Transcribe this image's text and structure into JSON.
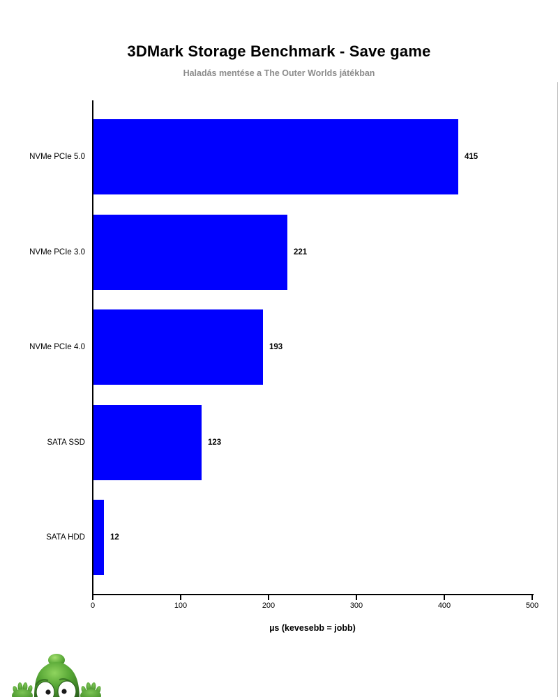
{
  "header": {
    "title": "3DMark Storage Benchmark - Save game",
    "subtitle": "Haladás mentése a The Outer Worlds játékban"
  },
  "chart_data": {
    "type": "bar",
    "orientation": "horizontal",
    "categories": [
      "NVMe PCIe 5.0",
      "NVMe PCIe 3.0",
      "NVMe PCIe 4.0",
      "SATA SSD",
      "SATA HDD"
    ],
    "values": [
      415,
      221,
      193,
      123,
      12
    ],
    "data_labels": [
      "415",
      "221",
      "193",
      "123",
      "12"
    ],
    "title": "3DMark Storage Benchmark - Save game",
    "subtitle": "Haladás mentése a The Outer Worlds játékban",
    "xlabel": "µs (kevesebb = jobb)",
    "ylabel": "",
    "xlim": [
      0,
      500
    ],
    "xticks": [
      "0",
      "100",
      "200",
      "300",
      "400",
      "500"
    ],
    "xtick_values": [
      0,
      100,
      200,
      300,
      400,
      500
    ],
    "grid": false,
    "legend": "none",
    "bar_color": "#0000ff",
    "axis_color": "#000000",
    "title_color": "#000000",
    "subtitle_color": "#8c8c8c"
  },
  "mascot": {
    "name": "green-alien-peeking-over-edge",
    "body_color": "#55a534",
    "body_highlight": "#8fd45e",
    "body_shadow": "#2c641c",
    "eye_color": "#ffffff",
    "pupil_color": "#1a1a1a"
  }
}
